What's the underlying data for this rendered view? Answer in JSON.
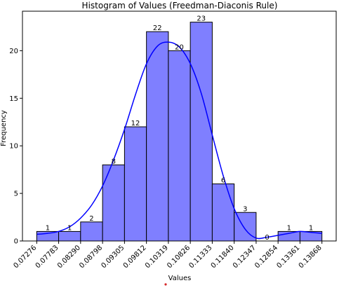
{
  "chart_data": {
    "type": "bar",
    "title": "Histogram of Values (Freedman-Diaconis Rule)",
    "xlabel": "Values",
    "ylabel": "Frequency",
    "bin_edges": [
      0.07276,
      0.07783,
      0.0829,
      0.08798,
      0.09305,
      0.09812,
      0.10319,
      0.10826,
      0.11333,
      0.1184,
      0.12347,
      0.12854,
      0.13361,
      0.13868
    ],
    "tick_labels": [
      "0.07276",
      "0.07783",
      "0.08290",
      "0.08798",
      "0.09305",
      "0.09812",
      "0.10319",
      "0.10826",
      "0.11333",
      "0.11840",
      "0.12347",
      "0.12854",
      "0.13361",
      "0.13868"
    ],
    "values": [
      1,
      1,
      2,
      8,
      12,
      22,
      20,
      23,
      6,
      3,
      0,
      1,
      1
    ],
    "data_labels": [
      "1",
      "1",
      "2",
      "8",
      "12",
      "22",
      "20",
      "23",
      "6",
      "3",
      "0",
      "1",
      "1"
    ],
    "ylim": [
      0,
      24.15
    ],
    "yticks": [
      0,
      5,
      10,
      15,
      20
    ],
    "ytick_labels": [
      "0",
      "5",
      "10",
      "15",
      "20"
    ],
    "grid": false,
    "bar_color": "#7f7fff",
    "bar_edge_color": "#000000",
    "kde": {
      "color": "#0000ff",
      "x": [
        0.0728,
        0.0753,
        0.0778,
        0.0804,
        0.0829,
        0.0855,
        0.088,
        0.0905,
        0.0931,
        0.0956,
        0.0981,
        0.1007,
        0.1032,
        0.1057,
        0.1083,
        0.1108,
        0.1133,
        0.1159,
        0.1184,
        0.121,
        0.1235,
        0.126,
        0.1286,
        0.1311,
        0.1336,
        0.1362,
        0.1387
      ],
      "y": [
        0.7,
        0.8,
        1.0,
        1.5,
        2.4,
        3.8,
        5.8,
        8.5,
        11.8,
        15.4,
        18.6,
        20.5,
        20.9,
        20.4,
        18.6,
        15.5,
        11.2,
        6.8,
        3.4,
        1.2,
        0.3,
        0.4,
        0.6,
        0.8,
        1.0,
        0.9,
        0.8
      ]
    },
    "stray_marker_color": "#d62728"
  }
}
